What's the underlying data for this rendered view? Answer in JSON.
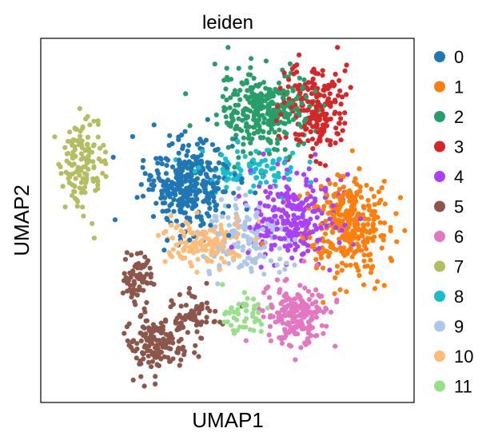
{
  "chart_data": {
    "type": "scatter",
    "title": "leiden",
    "xlabel": "UMAP1",
    "ylabel": "UMAP2",
    "xlim": [
      0,
      10
    ],
    "ylim": [
      0,
      10
    ],
    "grid": false,
    "ticks_visible": false,
    "legend_position": "right",
    "series": [
      {
        "name": "0",
        "color": "#1f77b4",
        "clusters": [
          {
            "cx": 3.9,
            "cy": 6.0,
            "sx": 0.75,
            "sy": 0.85,
            "n": 330
          }
        ]
      },
      {
        "name": "1",
        "color": "#ff7f0e",
        "clusters": [
          {
            "cx": 8.2,
            "cy": 4.9,
            "sx": 0.75,
            "sy": 0.85,
            "n": 330
          }
        ]
      },
      {
        "name": "2",
        "color": "#279e68",
        "clusters": [
          {
            "cx": 6.0,
            "cy": 8.0,
            "sx": 0.85,
            "sy": 0.7,
            "n": 310
          }
        ]
      },
      {
        "name": "3",
        "color": "#d62728",
        "clusters": [
          {
            "cx": 7.4,
            "cy": 8.1,
            "sx": 0.55,
            "sy": 0.8,
            "n": 200
          }
        ]
      },
      {
        "name": "4",
        "color": "#aa40fc",
        "clusters": [
          {
            "cx": 6.8,
            "cy": 5.0,
            "sx": 0.75,
            "sy": 0.85,
            "n": 260
          }
        ]
      },
      {
        "name": "5",
        "color": "#8c564b",
        "clusters": [
          {
            "cx": 3.1,
            "cy": 1.6,
            "sx": 0.55,
            "sy": 0.55,
            "n": 150
          },
          {
            "cx": 2.6,
            "cy": 3.4,
            "sx": 0.25,
            "sy": 0.55,
            "n": 70
          },
          {
            "cx": 4.1,
            "cy": 2.4,
            "sx": 0.45,
            "sy": 0.4,
            "n": 60
          }
        ]
      },
      {
        "name": "6",
        "color": "#e377c2",
        "clusters": [
          {
            "cx": 6.9,
            "cy": 2.4,
            "sx": 0.55,
            "sy": 0.55,
            "n": 200
          }
        ]
      },
      {
        "name": "7",
        "color": "#b5bd61",
        "clusters": [
          {
            "cx": 1.1,
            "cy": 6.6,
            "sx": 0.4,
            "sy": 0.9,
            "n": 130
          }
        ]
      },
      {
        "name": "8",
        "color": "#17becf",
        "clusters": [
          {
            "cx": 5.6,
            "cy": 6.4,
            "sx": 0.9,
            "sy": 0.4,
            "n": 90
          }
        ]
      },
      {
        "name": "9",
        "color": "#aec7e8",
        "clusters": [
          {
            "cx": 5.5,
            "cy": 4.5,
            "sx": 0.75,
            "sy": 0.7,
            "n": 140
          }
        ]
      },
      {
        "name": "10",
        "color": "#ffbb78",
        "clusters": [
          {
            "cx": 4.4,
            "cy": 4.4,
            "sx": 0.85,
            "sy": 0.4,
            "n": 140
          }
        ]
      },
      {
        "name": "11",
        "color": "#98df8a",
        "clusters": [
          {
            "cx": 5.4,
            "cy": 2.4,
            "sx": 0.3,
            "sy": 0.35,
            "n": 45
          }
        ]
      }
    ]
  }
}
